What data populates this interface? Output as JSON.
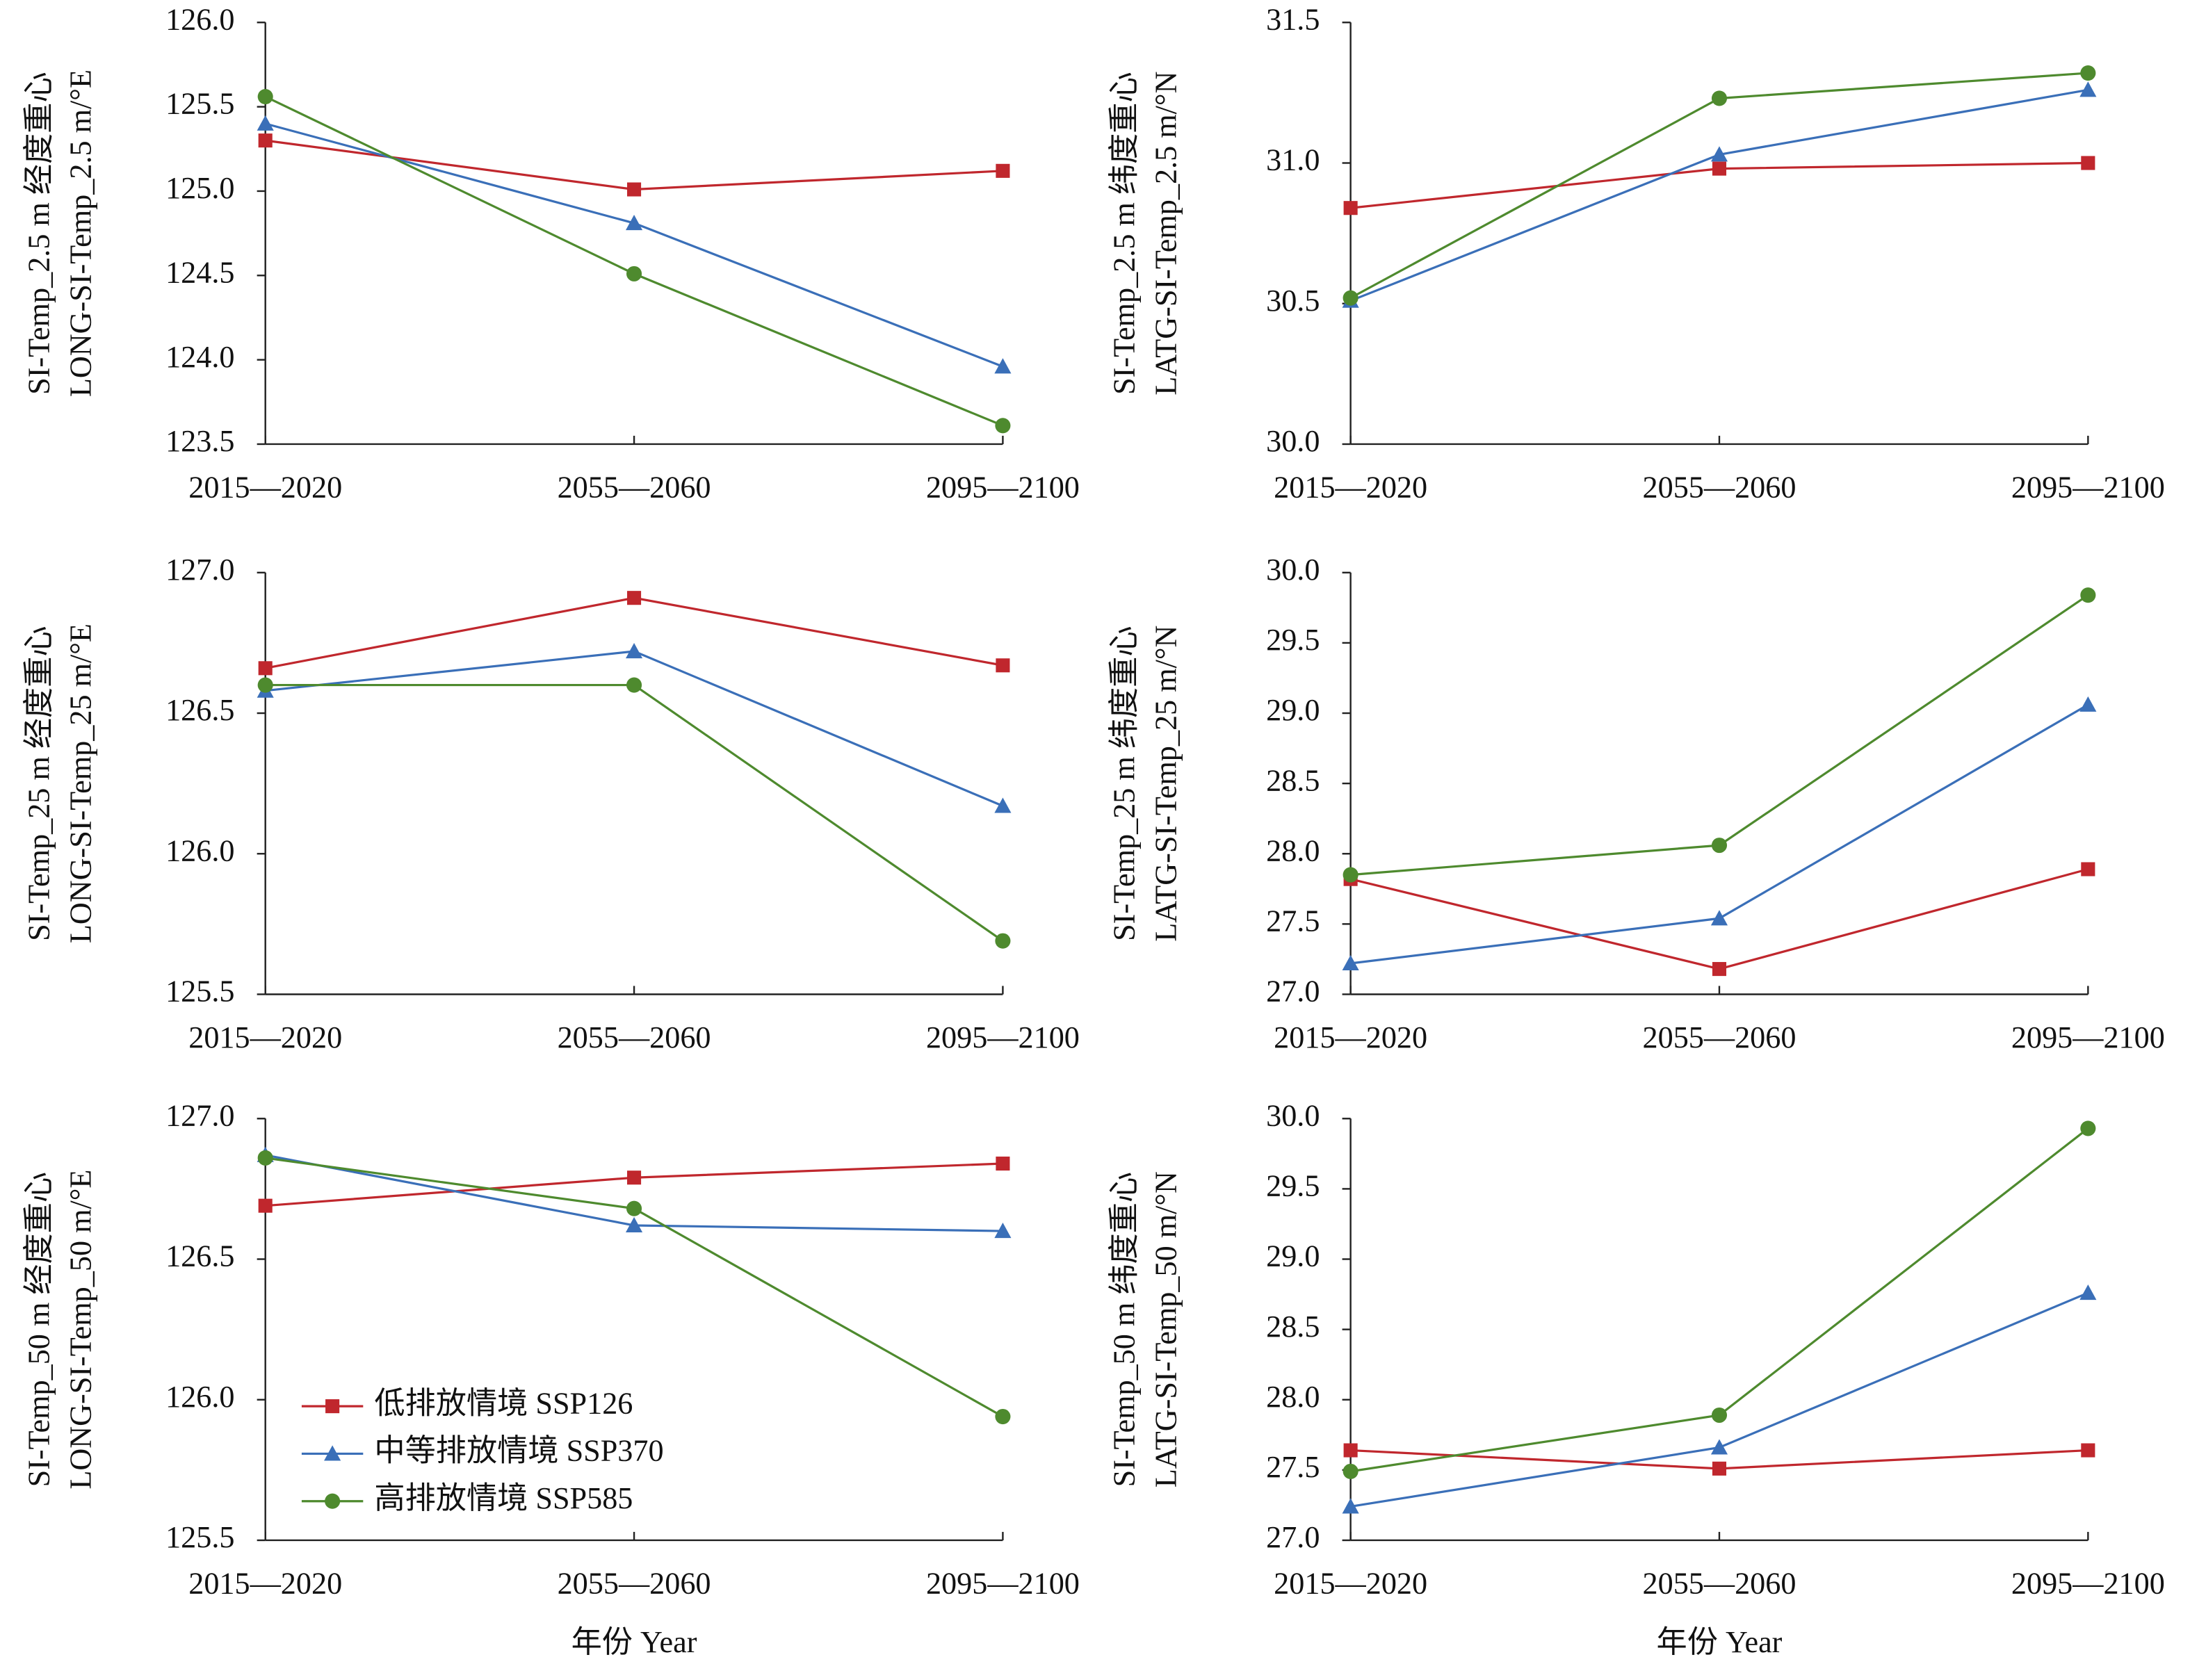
{
  "chart_data": [
    {
      "type": "line",
      "ylabel": [
        "SI-Temp_2.5 m 经度重心",
        "LONG-SI-Temp_2.5 m/°E"
      ],
      "categories": [
        "2015—2020",
        "2055—2060",
        "2095—2100"
      ],
      "ylim": [
        123.5,
        126
      ],
      "yticks": [
        123.5,
        {
          "value": 124,
          "label": "124.0"
        },
        124.5,
        {
          "value": 125,
          "label": "125.0"
        },
        125.5,
        {
          "value": 126,
          "label": "126.0"
        }
      ],
      "series": [
        {
          "color": "#c0272d",
          "marker": "square",
          "values": [
            125.3,
            125.01,
            125.12
          ]
        },
        {
          "color": "#3a6fb8",
          "marker": "triangle",
          "values": [
            125.4,
            124.81,
            123.96
          ]
        },
        {
          "color": "#4e8a2e",
          "marker": "circle",
          "values": [
            125.56,
            124.51,
            123.61
          ]
        }
      ]
    },
    {
      "type": "line",
      "ylabel": [
        "SI-Temp_2.5 m 纬度重心",
        "LATG-SI-Temp_2.5 m/°N"
      ],
      "categories": [
        "2015—2020",
        "2055—2060",
        "2095—2100"
      ],
      "ylim": [
        30,
        31.5
      ],
      "yticks": [
        {
          "value": 30,
          "label": "30.0"
        },
        30.5,
        {
          "value": 31,
          "label": "31.0"
        },
        31.5
      ],
      "series": [
        {
          "color": "#c0272d",
          "marker": "square",
          "values": [
            30.84,
            30.98,
            31.0
          ]
        },
        {
          "color": "#3a6fb8",
          "marker": "triangle",
          "values": [
            30.51,
            31.03,
            31.26
          ]
        },
        {
          "color": "#4e8a2e",
          "marker": "circle",
          "values": [
            30.52,
            31.23,
            31.32
          ]
        }
      ]
    },
    {
      "type": "line",
      "ylabel": [
        "SI-Temp_25 m 经度重心",
        "LONG-SI-Temp_25 m/°E"
      ],
      "categories": [
        "2015—2020",
        "2055—2060",
        "2095—2100"
      ],
      "ylim": [
        125.5,
        127
      ],
      "yticks": [
        125.5,
        {
          "value": 126,
          "label": "126.0"
        },
        126.5,
        {
          "value": 127,
          "label": "127.0"
        }
      ],
      "series": [
        {
          "color": "#c0272d",
          "marker": "square",
          "values": [
            126.66,
            126.91,
            126.67
          ]
        },
        {
          "color": "#3a6fb8",
          "marker": "triangle",
          "values": [
            126.58,
            126.72,
            126.17
          ]
        },
        {
          "color": "#4e8a2e",
          "marker": "circle",
          "values": [
            126.6,
            126.6,
            125.69
          ]
        }
      ]
    },
    {
      "type": "line",
      "ylabel": [
        "SI-Temp_25 m 纬度重心",
        "LATG-SI-Temp_25 m/°N"
      ],
      "categories": [
        "2015—2020",
        "2055—2060",
        "2095—2100"
      ],
      "ylim": [
        27,
        30
      ],
      "yticks": [
        {
          "value": 27,
          "label": "27.0"
        },
        27.5,
        {
          "value": 28,
          "label": "28.0"
        },
        28.5,
        {
          "value": 29,
          "label": "29.0"
        },
        29.5,
        {
          "value": 30,
          "label": "30.0"
        }
      ],
      "series": [
        {
          "color": "#c0272d",
          "marker": "square",
          "values": [
            27.82,
            27.18,
            27.89
          ]
        },
        {
          "color": "#3a6fb8",
          "marker": "triangle",
          "values": [
            27.22,
            27.54,
            29.06
          ]
        },
        {
          "color": "#4e8a2e",
          "marker": "circle",
          "values": [
            27.85,
            28.06,
            29.84
          ]
        }
      ]
    },
    {
      "type": "line",
      "ylabel": [
        "SI-Temp_50 m 经度重心",
        "LONG-SI-Temp_50 m/°E"
      ],
      "xlabel": "年份 Year",
      "categories": [
        "2015—2020",
        "2055—2060",
        "2095—2100"
      ],
      "ylim": [
        125.5,
        127
      ],
      "yticks": [
        125.5,
        {
          "value": 126,
          "label": "126.0"
        },
        126.5,
        {
          "value": 127,
          "label": "127.0"
        }
      ],
      "legend": "lower left",
      "series": [
        {
          "name": "低排放情境 SSP126",
          "color": "#c0272d",
          "marker": "square",
          "values": [
            126.69,
            126.79,
            126.84
          ]
        },
        {
          "name": "中等排放情境 SSP370",
          "color": "#3a6fb8",
          "marker": "triangle",
          "values": [
            126.87,
            126.62,
            126.6
          ]
        },
        {
          "name": "高排放情境 SSP585",
          "color": "#4e8a2e",
          "marker": "circle",
          "values": [
            126.86,
            126.68,
            125.94
          ]
        }
      ]
    },
    {
      "type": "line",
      "ylabel": [
        "SI-Temp_50 m 纬度重心",
        "LATG-SI-Temp_50 m/°N"
      ],
      "xlabel": "年份 Year",
      "categories": [
        "2015—2020",
        "2055—2060",
        "2095—2100"
      ],
      "ylim": [
        27,
        30
      ],
      "yticks": [
        {
          "value": 27,
          "label": "27.0"
        },
        27.5,
        {
          "value": 28,
          "label": "28.0"
        },
        28.5,
        {
          "value": 29,
          "label": "29.0"
        },
        29.5,
        {
          "value": 30,
          "label": "30.0"
        }
      ],
      "series": [
        {
          "color": "#c0272d",
          "marker": "square",
          "values": [
            27.64,
            27.51,
            27.64
          ]
        },
        {
          "color": "#3a6fb8",
          "marker": "triangle",
          "values": [
            27.24,
            27.66,
            28.76
          ]
        },
        {
          "color": "#4e8a2e",
          "marker": "circle",
          "values": [
            27.49,
            27.89,
            29.93
          ]
        }
      ]
    }
  ]
}
